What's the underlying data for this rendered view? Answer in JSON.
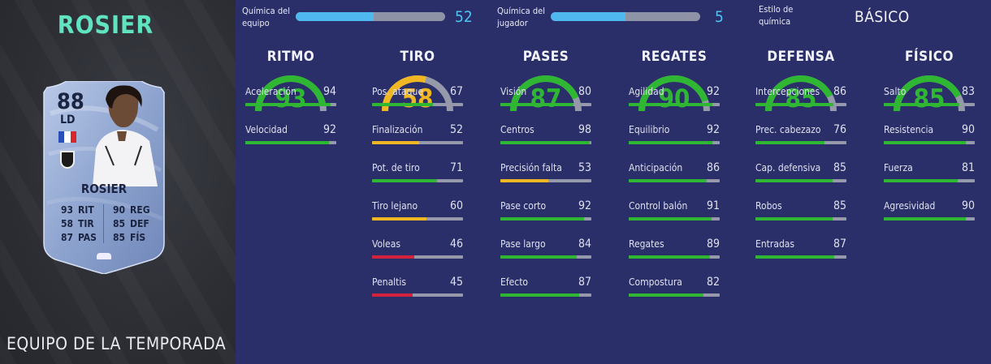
{
  "colors": {
    "green": "#2fb733",
    "yellow": "#f0b722",
    "red": "#d2223c",
    "chem_blue": "#4fb8ef",
    "title_teal": "#5fe3c0"
  },
  "player": {
    "name_big": "ROSIER",
    "card_type": "EQUIPO DE LA TEMPORADA"
  },
  "card": {
    "rating": "88",
    "position": "LD",
    "name": "ROSIER",
    "stats_left": [
      {
        "value": "93",
        "label": "RIT"
      },
      {
        "value": "58",
        "label": "TIR"
      },
      {
        "value": "87",
        "label": "PAS"
      }
    ],
    "stats_right": [
      {
        "value": "90",
        "label": "REG"
      },
      {
        "value": "85",
        "label": "DEF"
      },
      {
        "value": "85",
        "label": "FÍS"
      }
    ]
  },
  "chemistry": {
    "team_label_1": "Química del",
    "team_label_2": "equipo",
    "team_value": "52",
    "team_fraction": 0.52,
    "player_label_1": "Química del",
    "player_label_2": "jugador",
    "player_value": "5",
    "player_fraction": 0.5,
    "style_label_1": "Estilo de",
    "style_label_2": "química",
    "style_value": "BÁSICO"
  },
  "columns": [
    {
      "title": "RITMO",
      "value": "93",
      "color": "green",
      "stats": [
        {
          "name": "Aceleración",
          "value": "94",
          "color": "green"
        },
        {
          "name": "Velocidad",
          "value": "92",
          "color": "green"
        }
      ]
    },
    {
      "title": "TIRO",
      "value": "58",
      "color": "yellow",
      "stats": [
        {
          "name": "Pos. ataque",
          "value": "67",
          "color": "green"
        },
        {
          "name": "Finalización",
          "value": "52",
          "color": "yellow"
        },
        {
          "name": "Pot. de tiro",
          "value": "71",
          "color": "green"
        },
        {
          "name": "Tiro lejano",
          "value": "60",
          "color": "yellow"
        },
        {
          "name": "Voleas",
          "value": "46",
          "color": "red"
        },
        {
          "name": "Penaltis",
          "value": "45",
          "color": "red"
        }
      ]
    },
    {
      "title": "PASES",
      "value": "87",
      "color": "green",
      "stats": [
        {
          "name": "Visión",
          "value": "80",
          "color": "green"
        },
        {
          "name": "Centros",
          "value": "98",
          "color": "green"
        },
        {
          "name": "Precisión falta",
          "value": "53",
          "color": "yellow"
        },
        {
          "name": "Pase corto",
          "value": "92",
          "color": "green"
        },
        {
          "name": "Pase largo",
          "value": "84",
          "color": "green"
        },
        {
          "name": "Efecto",
          "value": "87",
          "color": "green"
        }
      ]
    },
    {
      "title": "REGATES",
      "value": "90",
      "color": "green",
      "stats": [
        {
          "name": "Agilidad",
          "value": "92",
          "color": "green"
        },
        {
          "name": "Equilibrio",
          "value": "92",
          "color": "green"
        },
        {
          "name": "Anticipación",
          "value": "86",
          "color": "green"
        },
        {
          "name": "Control balón",
          "value": "91",
          "color": "green"
        },
        {
          "name": "Regates",
          "value": "89",
          "color": "green"
        },
        {
          "name": "Compostura",
          "value": "82",
          "color": "green"
        }
      ]
    },
    {
      "title": "DEFENSA",
      "value": "85",
      "color": "green",
      "stats": [
        {
          "name": "Intercepciones",
          "value": "86",
          "color": "green"
        },
        {
          "name": "Prec. cabezazo",
          "value": "76",
          "color": "green"
        },
        {
          "name": "Cap. defensiva",
          "value": "85",
          "color": "green"
        },
        {
          "name": "Robos",
          "value": "85",
          "color": "green"
        },
        {
          "name": "Entradas",
          "value": "87",
          "color": "green"
        }
      ]
    },
    {
      "title": "FÍSICO",
      "value": "85",
      "color": "green",
      "stats": [
        {
          "name": "Salto",
          "value": "83",
          "color": "green"
        },
        {
          "name": "Resistencia",
          "value": "90",
          "color": "green"
        },
        {
          "name": "Fuerza",
          "value": "81",
          "color": "green"
        },
        {
          "name": "Agresividad",
          "value": "90",
          "color": "green"
        }
      ]
    }
  ]
}
